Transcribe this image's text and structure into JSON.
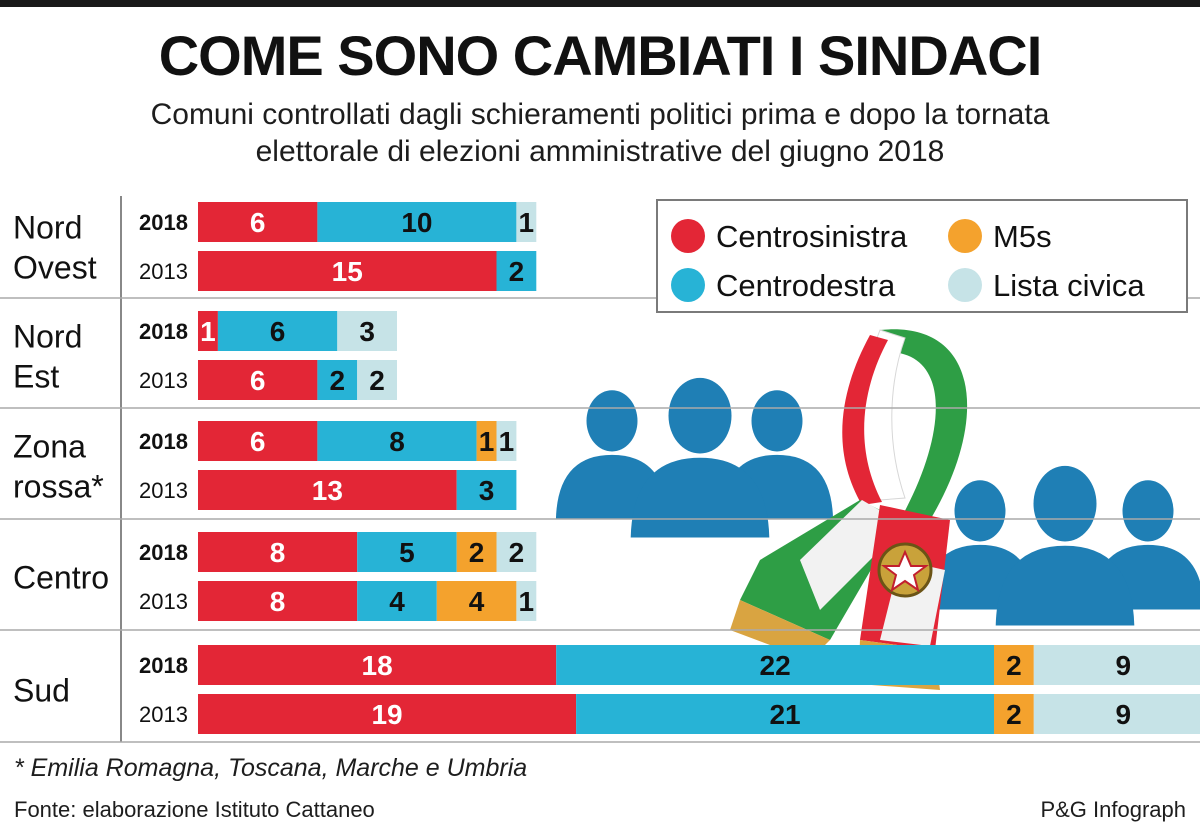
{
  "title": "COME SONO CAMBIATI I SINDACI",
  "subtitle_lines": [
    "Comuni controllati dagli schieramenti politici prima e dopo la tornata",
    "elettorale di elezioni amministrative del giugno 2018"
  ],
  "footnote": "* Emilia Romagna, Toscana, Marche e Umbria",
  "source": "Fonte: elaborazione Istituto Cattaneo",
  "credit": "P&G Infograph",
  "colors": {
    "centrosinistra": "#e32636",
    "centrodestra": "#27b3d6",
    "m5s": "#f4a22d",
    "lista_civica": "#c6e3e7",
    "people_icons": "#1f7fb5"
  },
  "chart_data": {
    "type": "bar",
    "orientation": "horizontal",
    "stacked": true,
    "legend_position": "top-right",
    "legend": [
      {
        "key": "centrosinistra",
        "label": "Centrosinistra"
      },
      {
        "key": "m5s",
        "label": "M5s"
      },
      {
        "key": "centrodestra",
        "label": "Centrodestra"
      },
      {
        "key": "lista_civica",
        "label": "Lista civica"
      }
    ],
    "series_order": [
      "centrosinistra",
      "centrodestra",
      "m5s",
      "lista_civica"
    ],
    "groups": [
      {
        "label_lines": [
          "Nord",
          "Ovest"
        ],
        "rows": [
          {
            "year": "2018",
            "bold": true,
            "values": {
              "centrosinistra": 6,
              "centrodestra": 10,
              "m5s": 0,
              "lista_civica": 1
            }
          },
          {
            "year": "2013",
            "bold": false,
            "values": {
              "centrosinistra": 15,
              "centrodestra": 2,
              "m5s": 0,
              "lista_civica": 0
            }
          }
        ]
      },
      {
        "label_lines": [
          "Nord",
          "Est"
        ],
        "rows": [
          {
            "year": "2018",
            "bold": true,
            "values": {
              "centrosinistra": 1,
              "centrodestra": 6,
              "m5s": 0,
              "lista_civica": 3
            }
          },
          {
            "year": "2013",
            "bold": false,
            "values": {
              "centrosinistra": 6,
              "centrodestra": 2,
              "m5s": 0,
              "lista_civica": 2
            }
          }
        ]
      },
      {
        "label_lines": [
          "Zona",
          "rossa*"
        ],
        "rows": [
          {
            "year": "2018",
            "bold": true,
            "values": {
              "centrosinistra": 6,
              "centrodestra": 8,
              "m5s": 1,
              "lista_civica": 1
            }
          },
          {
            "year": "2013",
            "bold": false,
            "values": {
              "centrosinistra": 13,
              "centrodestra": 3,
              "m5s": 0,
              "lista_civica": 0
            }
          }
        ]
      },
      {
        "label_lines": [
          "Centro"
        ],
        "rows": [
          {
            "year": "2018",
            "bold": true,
            "values": {
              "centrosinistra": 8,
              "centrodestra": 5,
              "m5s": 2,
              "lista_civica": 2
            }
          },
          {
            "year": "2013",
            "bold": false,
            "values": {
              "centrosinistra": 8,
              "centrodestra": 4,
              "m5s": 4,
              "lista_civica": 1
            }
          }
        ]
      },
      {
        "label_lines": [
          "Sud"
        ],
        "rows": [
          {
            "year": "2018",
            "bold": true,
            "values": {
              "centrosinistra": 18,
              "centrodestra": 22,
              "m5s": 2,
              "lista_civica": 9
            }
          },
          {
            "year": "2013",
            "bold": false,
            "values": {
              "centrosinistra": 19,
              "centrodestra": 21,
              "m5s": 2,
              "lista_civica": 9
            }
          }
        ]
      }
    ]
  }
}
